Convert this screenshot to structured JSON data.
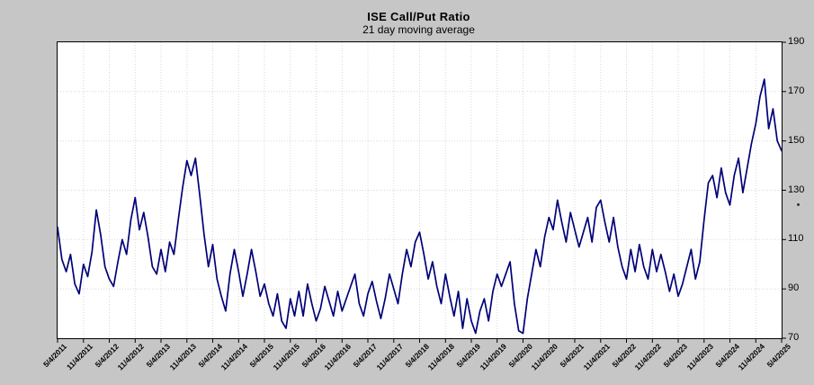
{
  "title": "ISE  Call/Put Ratio",
  "subtitle": "21 day moving average",
  "colors": {
    "background": "#c6c6c6",
    "plot_background": "#ffffff",
    "line": "#000078",
    "grid": "#d8d8d8",
    "border": "#000000",
    "text": "#000000"
  },
  "chart_data": {
    "type": "line",
    "title": "ISE  Call/Put Ratio",
    "subtitle": "21 day moving average",
    "xlabel": "",
    "ylabel": "",
    "ylim": [
      70,
      190
    ],
    "y_ticks": [
      70,
      90,
      110,
      130,
      150,
      170,
      190
    ],
    "y_axis_side": "right",
    "grid": true,
    "legend": "none",
    "x_tick_every": 6,
    "x_tick_labels": [
      "5/4/2011",
      "11/4/2011",
      "5/4/2012",
      "11/4/2012",
      "5/4/2013",
      "11/4/2013",
      "5/4/2014",
      "11/4/2014",
      "5/4/2015",
      "11/4/2015",
      "5/4/2016",
      "11/4/2016",
      "5/4/2017",
      "11/4/2017",
      "5/4/2018",
      "11/4/2018",
      "5/4/2019",
      "11/4/2019",
      "5/4/2020",
      "11/4/2020",
      "5/4/2021",
      "11/4/2021",
      "5/4/2022",
      "11/4/2022",
      "5/4/2023",
      "11/4/2023",
      "5/4/2024",
      "11/4/2024",
      "5/4/2025"
    ],
    "x_start": "5/4/2011",
    "x_end": "5/4/2025",
    "x_resolution": "monthly",
    "series": [
      {
        "name": "ISE Call/Put Ratio 21-day moving average",
        "color": "#000078",
        "values": [
          115,
          102,
          97,
          104,
          92,
          88,
          100,
          95,
          105,
          122,
          112,
          99,
          94,
          91,
          101,
          110,
          104,
          118,
          127,
          114,
          121,
          111,
          99,
          96,
          106,
          97,
          109,
          104,
          118,
          131,
          142,
          136,
          143,
          128,
          112,
          99,
          108,
          94,
          87,
          81,
          96,
          106,
          97,
          87,
          96,
          106,
          97,
          87,
          92,
          84,
          79,
          88,
          77,
          74,
          86,
          79,
          89,
          79,
          92,
          84,
          77,
          82,
          91,
          85,
          79,
          89,
          81,
          86,
          91,
          96,
          84,
          79,
          88,
          93,
          85,
          78,
          86,
          96,
          90,
          84,
          96,
          106,
          99,
          109,
          113,
          104,
          94,
          101,
          91,
          84,
          96,
          87,
          79,
          89,
          74,
          86,
          77,
          72,
          81,
          86,
          77,
          89,
          96,
          91,
          96,
          101,
          84,
          73,
          72,
          86,
          96,
          106,
          99,
          111,
          119,
          114,
          126,
          117,
          109,
          121,
          114,
          107,
          113,
          119,
          109,
          123,
          126,
          117,
          109,
          119,
          107,
          99,
          94,
          106,
          97,
          108,
          99,
          94,
          106,
          97,
          104,
          97,
          89,
          96,
          87,
          92,
          99,
          106,
          94,
          101,
          118,
          133,
          136,
          127,
          139,
          129,
          124,
          136,
          143,
          129,
          139,
          149,
          157,
          168,
          175,
          155,
          163,
          150,
          146
        ]
      }
    ]
  }
}
